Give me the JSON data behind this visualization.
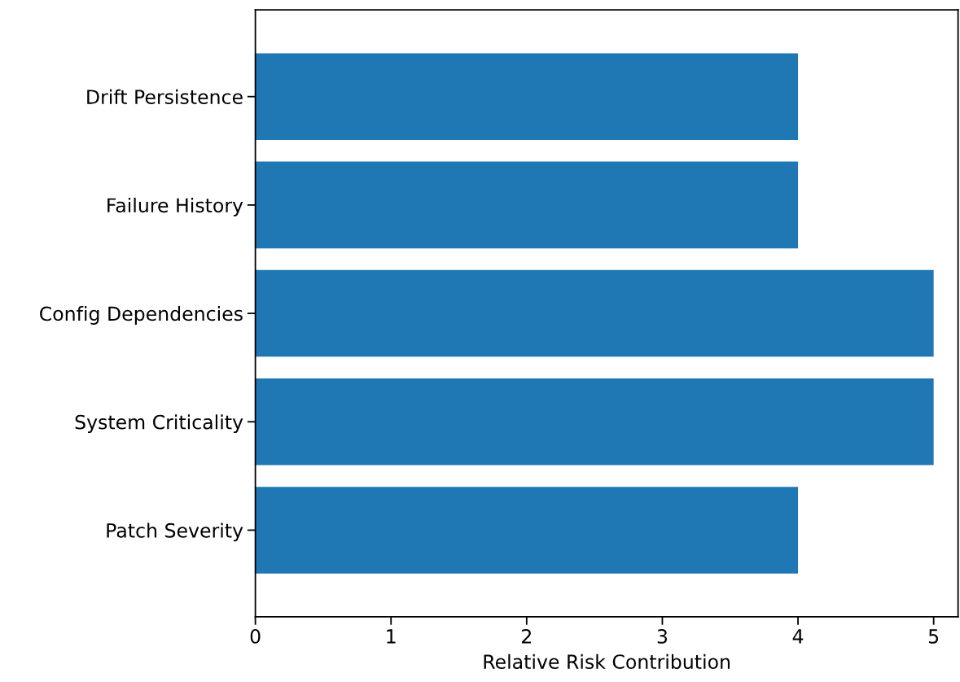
{
  "chart_data": {
    "type": "bar",
    "orientation": "horizontal",
    "categories": [
      "Drift Persistence",
      "Failure History",
      "Config Dependencies",
      "System Criticality",
      "Patch Severity"
    ],
    "values": [
      4,
      4,
      5,
      5,
      4
    ],
    "color": "#1f77b4",
    "xlabel": "Relative Risk Contribution",
    "xlim": [
      0,
      5.18
    ],
    "xticks": [
      0,
      1,
      2,
      3,
      4,
      5
    ],
    "grid": false
  }
}
